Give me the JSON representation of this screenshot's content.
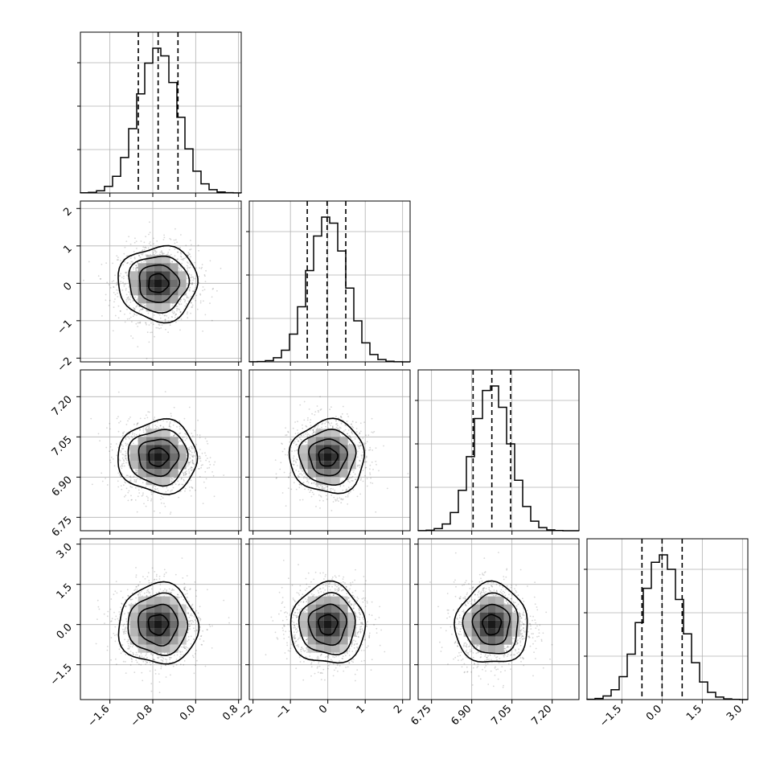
{
  "chart_data": {
    "type": "corner",
    "params": [
      {
        "mean": -0.7,
        "sd": 0.37,
        "range": [
          -2.15,
          0.85
        ],
        "ticks": [
          -1.6,
          -0.8,
          0.0,
          0.8
        ],
        "tick_labels": [
          "−1.6",
          "−0.8",
          "0.0",
          "0.8"
        ],
        "quantiles": [
          -1.07,
          -0.7,
          -0.33
        ]
      },
      {
        "mean": 0.0,
        "sd": 0.5,
        "range": [
          -2.1,
          2.2
        ],
        "ticks": [
          -2,
          -1,
          0,
          1,
          2
        ],
        "tick_labels": [
          "−2",
          "−1",
          "0",
          "1",
          "2"
        ],
        "quantiles": [
          -0.55,
          -0.02,
          0.48
        ]
      },
      {
        "mean": 6.975,
        "sd": 0.068,
        "range": [
          6.7,
          7.3
        ],
        "ticks": [
          6.75,
          6.9,
          7.05,
          7.2
        ],
        "tick_labels": [
          "6.75",
          "6.90",
          "7.05",
          "7.20"
        ],
        "quantiles": [
          6.905,
          6.975,
          7.045
        ]
      },
      {
        "mean": 0.0,
        "sd": 0.75,
        "range": [
          -2.8,
          3.2
        ],
        "ticks": [
          -1.5,
          0.0,
          1.5,
          3.0
        ],
        "tick_labels": [
          "−1.5",
          "0.0",
          "1.5",
          "3.0"
        ],
        "quantiles": [
          -0.75,
          0.0,
          0.75
        ]
      }
    ],
    "hist_bins": 20,
    "hist_y_ticks": [
      0.3,
      0.6,
      0.9
    ],
    "levels_sigma": [
      0.5,
      1.0,
      1.5,
      2.0
    ],
    "grid": true,
    "colors": {
      "line": "#000000",
      "scatter": "#000000",
      "density": "#000000",
      "grid": "#b0b0b0"
    }
  }
}
